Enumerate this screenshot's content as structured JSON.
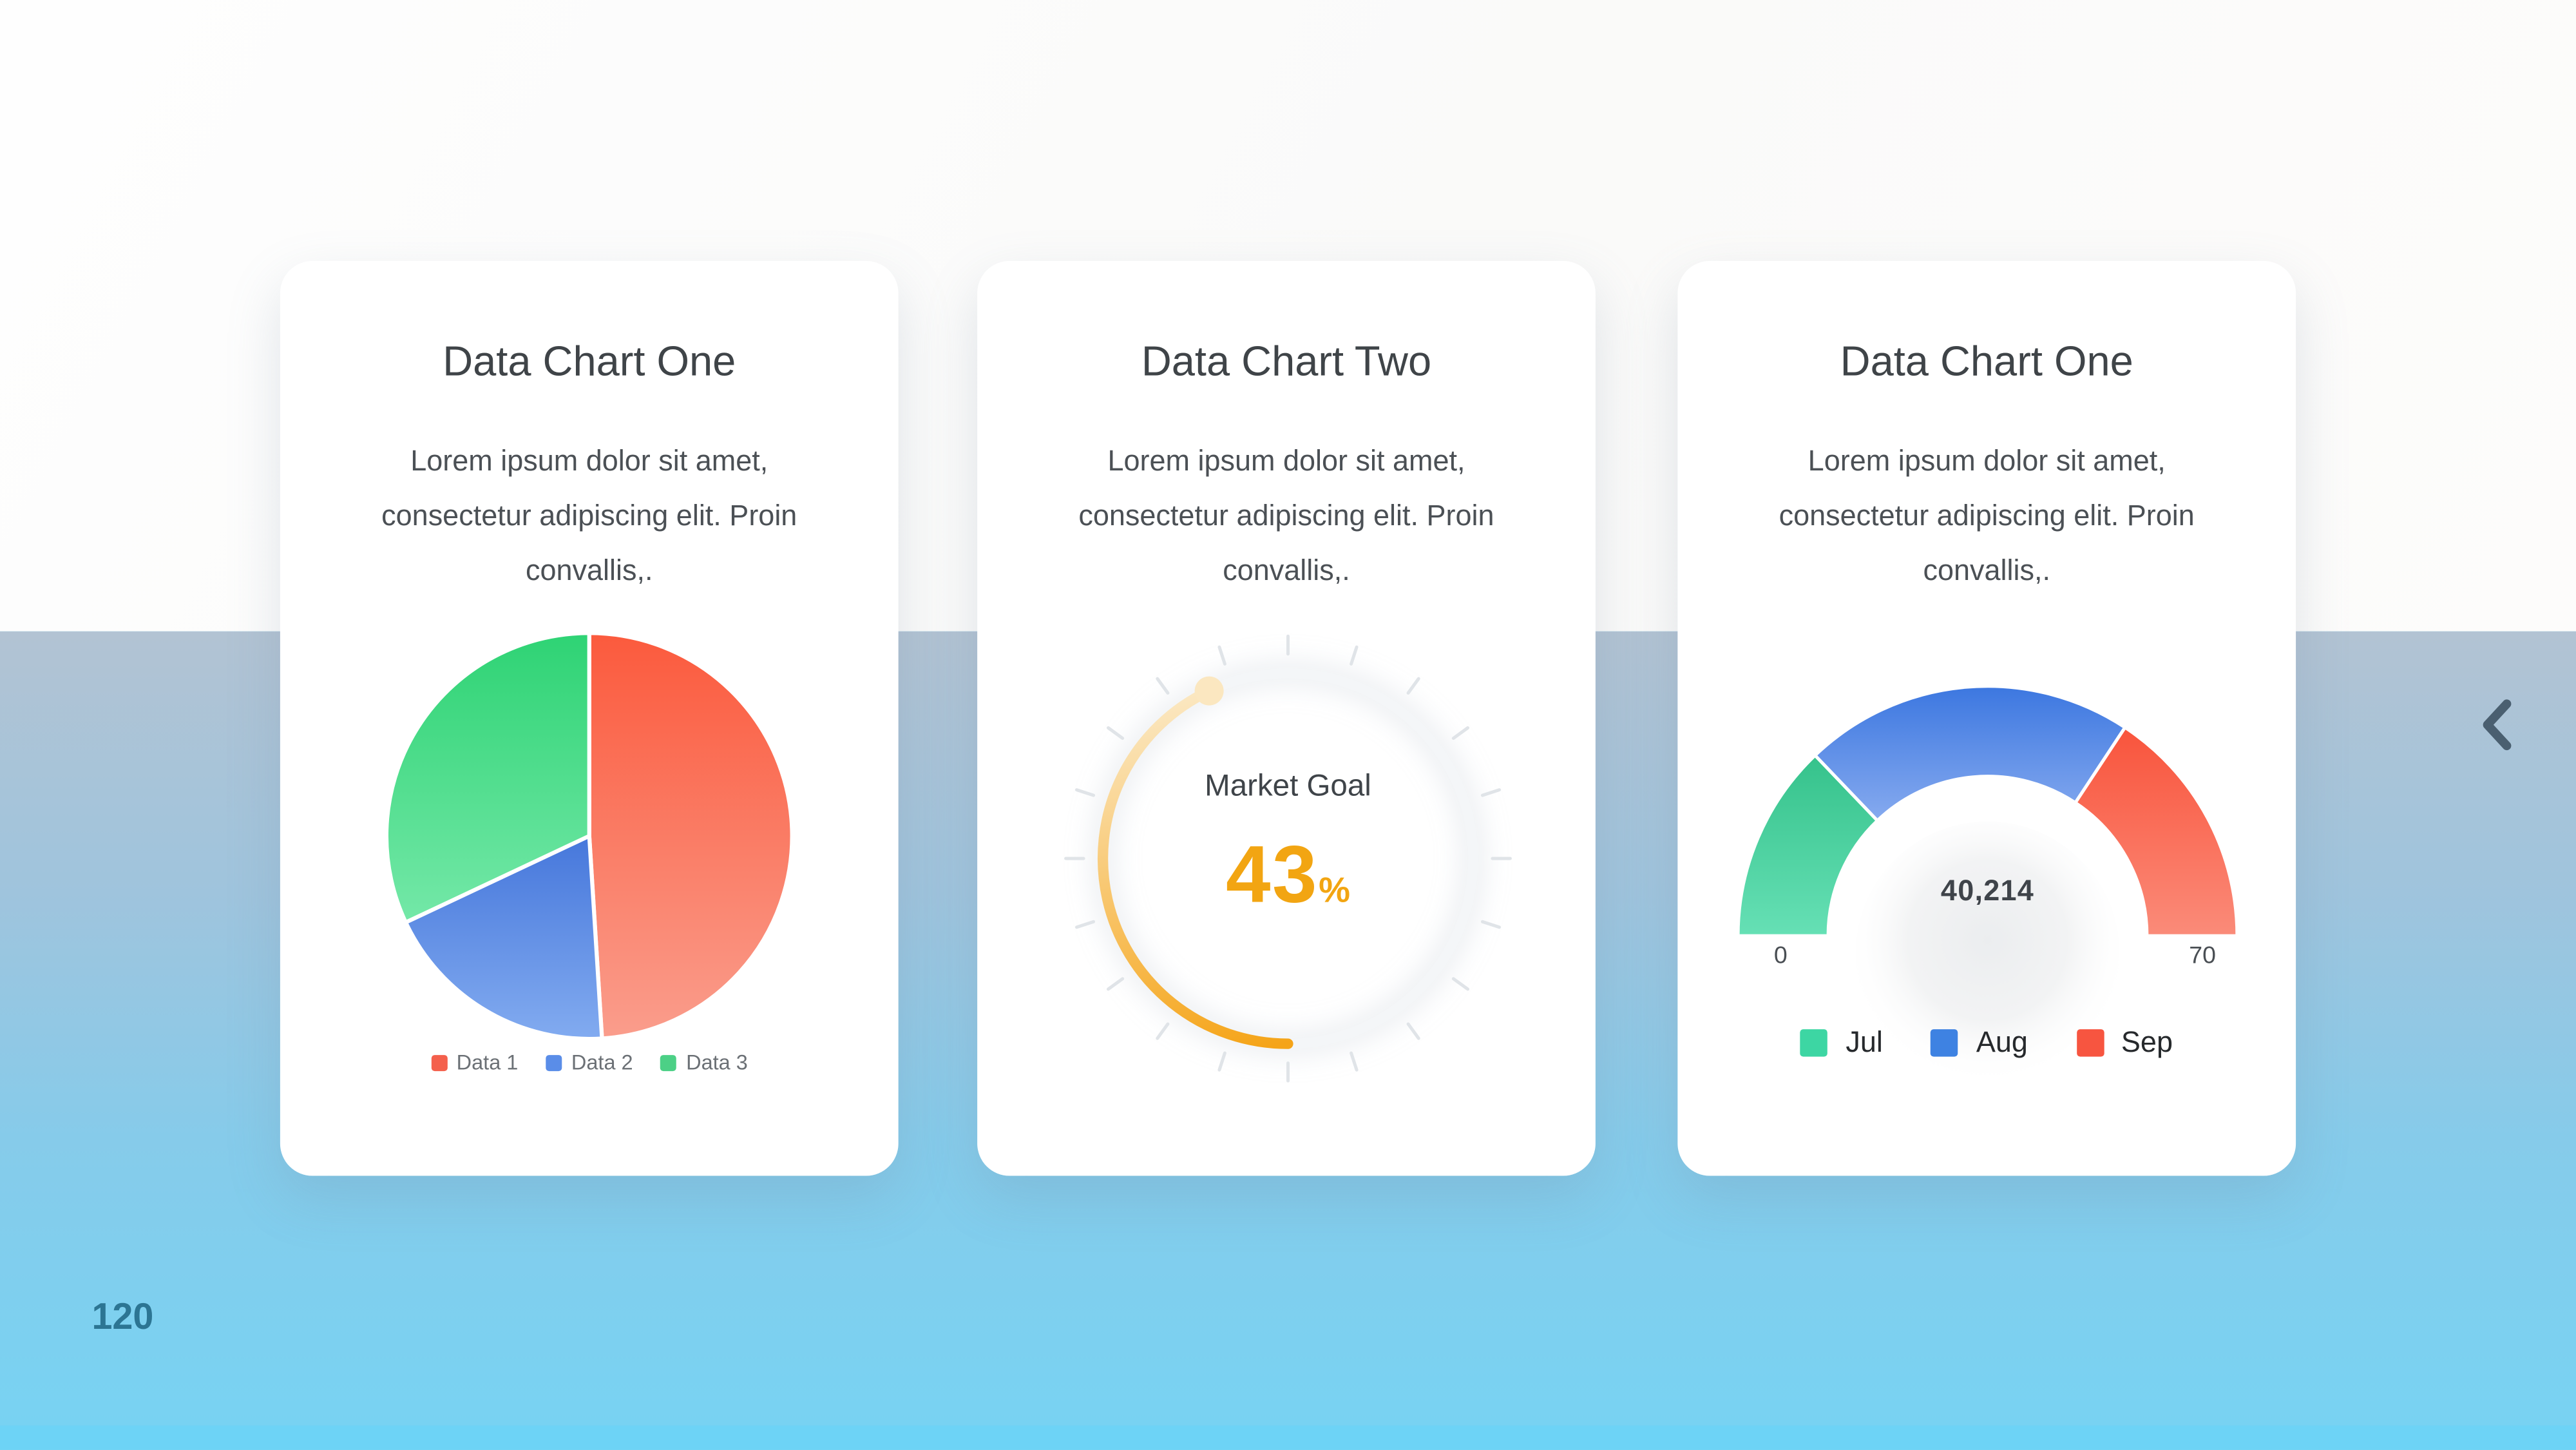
{
  "page": {
    "number": "120"
  },
  "nav": {
    "prev_icon": "chevron-left"
  },
  "colors": {
    "top_background": "#FBFBFA",
    "mid_background": "#B2C3D3",
    "bottom_background": "#77D3F3",
    "card_background": "#FFFFFF",
    "title_text": "#3F4448",
    "body_text": "#4B5055",
    "accent_orange": "#F2A512",
    "page_number": "#2C7593",
    "chevron": "#4A5F70"
  },
  "cards": [
    {
      "title": "Data Chart One",
      "description": "Lorem ipsum dolor sit amet, consectetur adipiscing elit. Proin convallis,."
    },
    {
      "title": "Data Chart Two",
      "description": "Lorem ipsum dolor sit amet, consectetur adipiscing elit. Proin convallis,."
    },
    {
      "title": "Data Chart One",
      "description": "Lorem ipsum dolor sit amet, consectetur adipiscing elit. Proin convallis,."
    }
  ],
  "chart_data": [
    {
      "type": "pie",
      "title": "Data Chart One",
      "labels": [
        "Data 1",
        "Data 2",
        "Data 3"
      ],
      "values": [
        49,
        19,
        32
      ],
      "unit": "percent_of_whole",
      "slice_gradients": [
        [
          "#FB5A3D",
          "#FA9D8C"
        ],
        [
          "#4677DB",
          "#82ABF0"
        ],
        [
          "#2ED374",
          "#74E8A8"
        ]
      ],
      "legend_colors": [
        "#F4604C",
        "#5A8DE8",
        "#4CD086"
      ],
      "legend_position": "bottom",
      "start_angle_deg": 0,
      "direction": "clockwise"
    },
    {
      "type": "radial-progress",
      "title": "Data Chart Two",
      "label": "Market Goal",
      "value": 43,
      "max": 100,
      "unit": "%",
      "arc_gradient": [
        "#F5A418",
        "#FBE7C0"
      ],
      "tick_count": 20,
      "tick_color": "#E0E4E8",
      "arc_start": "bottom",
      "direction": "counterclockwise"
    },
    {
      "type": "gauge",
      "title": "Data Chart One",
      "min": 0,
      "max": 70,
      "center_value": "40,214",
      "categories": [
        "Jul",
        "Aug",
        "Sep"
      ],
      "values": [
        18,
        30,
        22
      ],
      "segment_gradients": [
        [
          "#35C28B",
          "#66E0B5"
        ],
        [
          "#3C77E0",
          "#86AAEF"
        ],
        [
          "#F9543C",
          "#FA8B79"
        ]
      ],
      "legend_colors": [
        "#3DD6A3",
        "#3E82E2",
        "#F75540"
      ],
      "legend_position": "bottom"
    }
  ]
}
